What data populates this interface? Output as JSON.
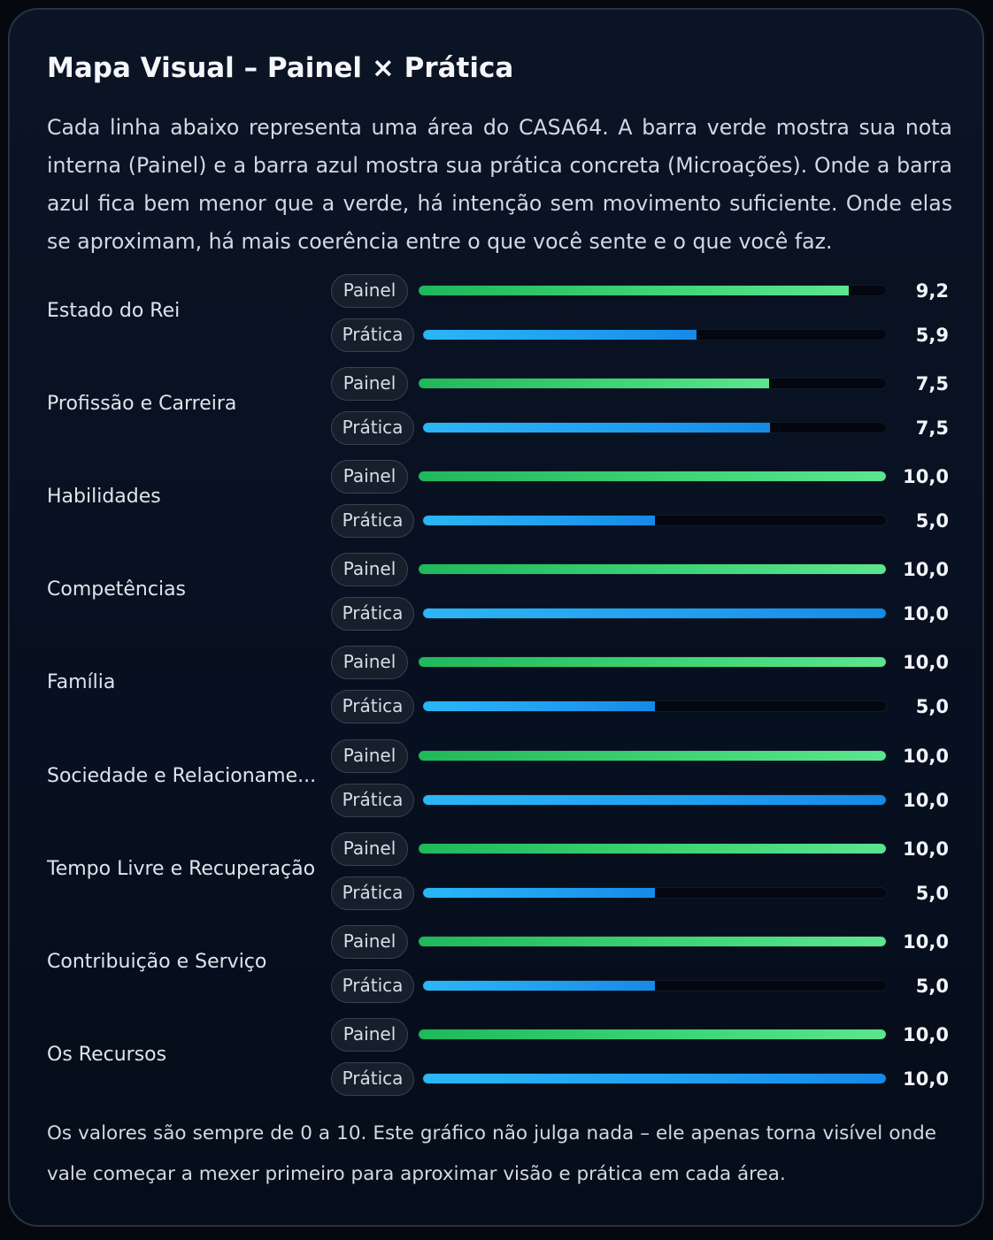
{
  "card": {
    "title": "Mapa Visual – Painel × Prática",
    "intro": "Cada linha abaixo representa uma área do CASA64. A barra verde mostra sua nota interna (Painel) e a barra azul mostra sua prática concreta (Microações). Onde a barra azul fica bem menor que a verde, há intenção sem movimento suficiente. Onde elas se aproximam, há mais coerência entre o que você sente e o que você faz.",
    "footer": "Os valores são sempre de 0 a 10. Este gráfico não julga nada – ele apenas torna visível onde vale começar a mexer primeiro para aproximar visão e prática em cada área."
  },
  "chart_data": {
    "type": "bar",
    "orientation": "horizontal",
    "xlim": [
      0,
      10
    ],
    "categories": [
      "Estado do Rei",
      "Profissão e Carreira",
      "Habilidades",
      "Competências",
      "Família",
      "Sociedade e Relacioname...",
      "Tempo Livre e Recuperação",
      "Contribuição e Serviço",
      "Os Recursos"
    ],
    "series": [
      {
        "name": "Painel",
        "color": "#3fd777",
        "values": [
          9.2,
          7.5,
          10.0,
          10.0,
          10.0,
          10.0,
          10.0,
          10.0,
          10.0
        ],
        "labels": [
          "9,2",
          "7,5",
          "10,0",
          "10,0",
          "10,0",
          "10,0",
          "10,0",
          "10,0",
          "10,0"
        ]
      },
      {
        "name": "Prática",
        "color": "#1f9ef0",
        "values": [
          5.9,
          7.5,
          5.0,
          10.0,
          5.0,
          10.0,
          5.0,
          5.0,
          10.0
        ],
        "labels": [
          "5,9",
          "7,5",
          "5,0",
          "10,0",
          "5,0",
          "10,0",
          "5,0",
          "5,0",
          "10,0"
        ]
      }
    ]
  }
}
